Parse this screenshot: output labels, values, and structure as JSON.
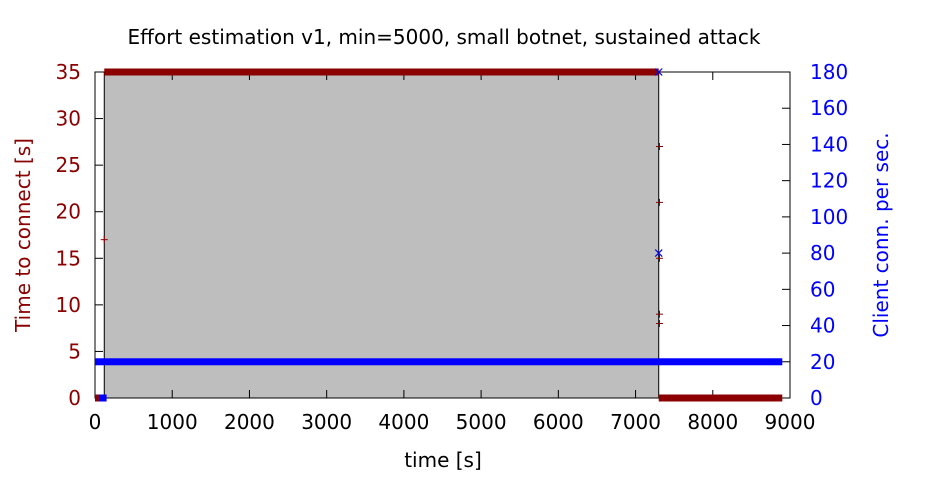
{
  "chart_data": {
    "type": "scatter",
    "title": "Effort estimation v1, min=5000, small botnet, sustained attack",
    "xlabel": "time [s]",
    "ylabel_left": "Time to connect [s]",
    "ylabel_right": "Client conn. per sec.",
    "xlim": [
      0,
      9000
    ],
    "ylim_left": [
      0,
      35
    ],
    "ylim_right": [
      0,
      180
    ],
    "x_ticks": [
      "0",
      "1000",
      "2000",
      "3000",
      "4000",
      "5000",
      "6000",
      "7000",
      "8000",
      "9000"
    ],
    "y_left_ticks": [
      "0",
      "5",
      "10",
      "15",
      "20",
      "25",
      "30",
      "35"
    ],
    "y_right_ticks": [
      "0",
      "20",
      "40",
      "60",
      "80",
      "100",
      "120",
      "140",
      "160",
      "180"
    ],
    "attack_window": {
      "x_start": 120,
      "x_end": 7300,
      "fill": "#bebebe"
    },
    "series": [
      {
        "axis": "left",
        "marker": "plus",
        "color": "#8b0000",
        "dense_runs": [
          {
            "x_start": 0,
            "x_end": 120,
            "y": 0
          },
          {
            "x_start": 120,
            "x_end": 7300,
            "y": 35
          },
          {
            "x_start": 7300,
            "x_end": 8900,
            "y": 0
          }
        ],
        "points": [
          {
            "x": 120,
            "y": 17
          },
          {
            "x": 7310,
            "y": 27
          },
          {
            "x": 7310,
            "y": 21
          },
          {
            "x": 7310,
            "y": 15
          },
          {
            "x": 7310,
            "y": 9
          },
          {
            "x": 7310,
            "y": 8
          }
        ]
      },
      {
        "axis": "right",
        "marker": "cross",
        "color": "#0000ff",
        "dense_runs": [
          {
            "x_start": 0,
            "x_end": 8900,
            "y": 20
          },
          {
            "x_start": 50,
            "x_end": 150,
            "y": 0
          }
        ],
        "points": [
          {
            "x": 7300,
            "y": 80
          },
          {
            "x": 7300,
            "y": 180
          }
        ]
      }
    ]
  }
}
